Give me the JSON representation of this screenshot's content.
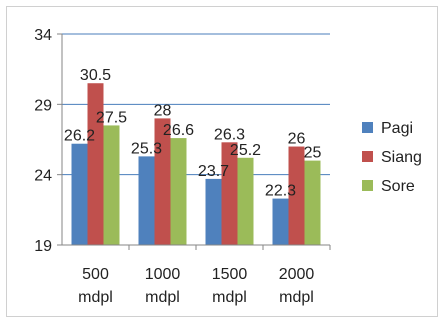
{
  "chart_data": {
    "type": "bar",
    "title": "",
    "xlabel": "",
    "ylabel": "",
    "ylim": [
      19,
      34
    ],
    "yticks": [
      "19",
      "24",
      "29",
      "34"
    ],
    "grid": true,
    "legend_position": "right",
    "categories": [
      [
        "500",
        "mdpl"
      ],
      [
        "1000",
        "mdpl"
      ],
      [
        "1500",
        "mdpl"
      ],
      [
        "2000",
        "mdpl"
      ]
    ],
    "series": [
      {
        "name": "Pagi",
        "color": "#4f81bd",
        "values": [
          26.2,
          25.3,
          23.7,
          22.3
        ],
        "labels": [
          "26.2",
          "25.3",
          "23.7",
          "22.3"
        ]
      },
      {
        "name": "Siang",
        "color": "#c0504d",
        "values": [
          30.5,
          28,
          26.3,
          26
        ],
        "labels": [
          "30.5",
          "28",
          "26.3",
          "26"
        ]
      },
      {
        "name": "Sore",
        "color": "#9bbb59",
        "values": [
          27.5,
          26.6,
          25.2,
          25
        ],
        "labels": [
          "27.5",
          "26.6",
          "25.2",
          "25"
        ]
      }
    ]
  }
}
